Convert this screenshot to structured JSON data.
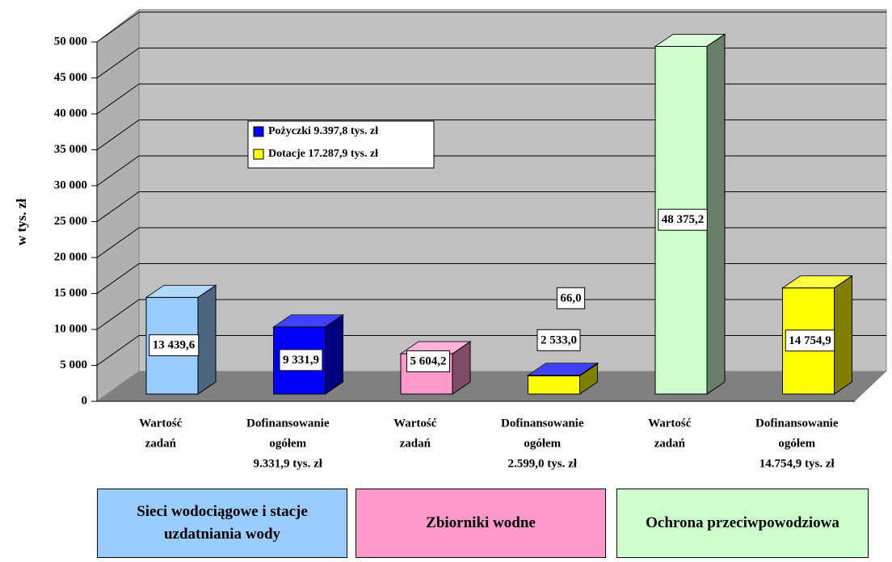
{
  "chart_data": {
    "type": "bar3d",
    "ylabel": "w tys. zł",
    "categories": [
      [
        "Wartość",
        "zadań"
      ],
      [
        "Dofinansowanie",
        "ogółem",
        "9.331,9 tys. zł"
      ],
      [
        "Wartość",
        "zadań"
      ],
      [
        "Dofinansowanie",
        "ogółem",
        "2.599,0 tys. zł"
      ],
      [
        "Wartość",
        "zadań"
      ],
      [
        "Dofinansowanie",
        "ogółem",
        "14.754,9 tys. zł"
      ]
    ],
    "series": [
      {
        "colors": [
          "#99ccff",
          null,
          "#ff99cc",
          null,
          "#ccffcc",
          null
        ],
        "values": [
          13439.6,
          null,
          5604.2,
          null,
          48375.2,
          null
        ],
        "value_labels": [
          "13 439,6",
          null,
          "5 604,2",
          null,
          "48 375,2",
          null
        ]
      },
      {
        "name": "Pożyczki 9.397,8 tys. zł",
        "color": "#0000ff",
        "values": [
          null,
          9331.9,
          null,
          66.0,
          null,
          null
        ],
        "value_labels": [
          null,
          "9 331,9",
          null,
          "66,0",
          null,
          null
        ]
      },
      {
        "name": "Dotacje 17.287,9 tys. zł",
        "color": "#ffff00",
        "values": [
          null,
          null,
          null,
          2533.0,
          null,
          14754.9
        ],
        "value_labels": [
          null,
          null,
          null,
          "2 533,0",
          null,
          "14 754,9"
        ]
      }
    ],
    "groups": [
      {
        "label": "Sieci wodociągowe i stacje uzdatniania wody",
        "color": "#99ccff"
      },
      {
        "label": "Zbiorniki wodne",
        "color": "#ff99cc"
      },
      {
        "label": "Ochrona przeciwpowodziowa",
        "color": "#ccffcc"
      }
    ],
    "ylim": [
      0,
      50000
    ],
    "yticks": [
      0,
      {
        "value": 5000,
        "label": "5 000"
      },
      {
        "value": 10000,
        "label": "10 000"
      },
      {
        "value": 15000,
        "label": "15 000"
      },
      {
        "value": 20000,
        "label": "20 000"
      },
      {
        "value": 25000,
        "label": "25 000"
      },
      {
        "value": 30000,
        "label": "30 000"
      },
      {
        "value": 35000,
        "label": "35 000"
      },
      {
        "value": 40000,
        "label": "40 000"
      },
      {
        "value": 45000,
        "label": "45 000"
      },
      {
        "value": 50000,
        "label": "50 000"
      }
    ],
    "grid": true
  }
}
